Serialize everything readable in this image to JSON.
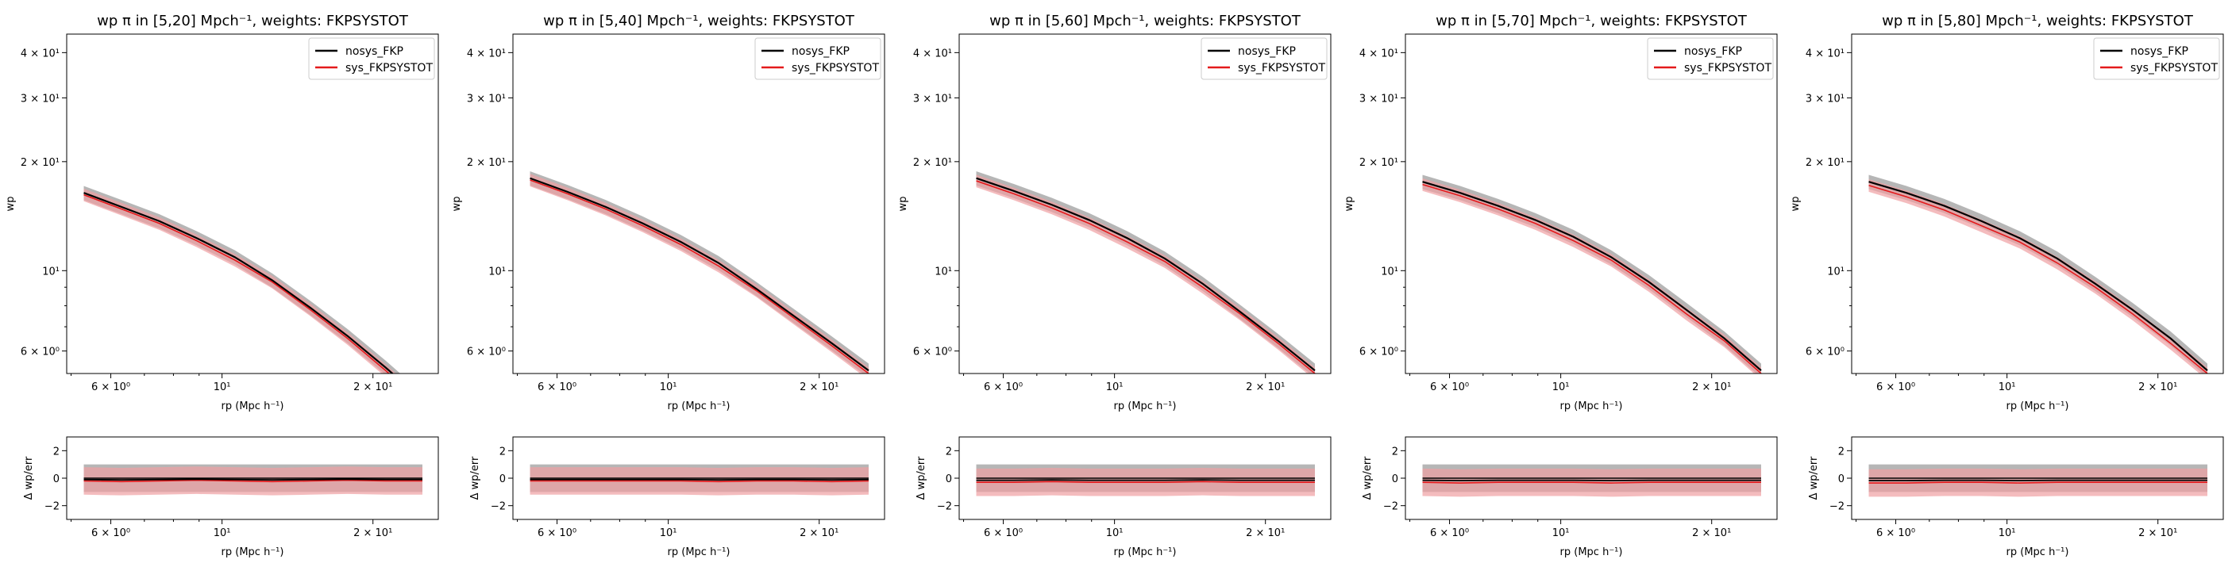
{
  "colors": {
    "nosys": "#000000",
    "sys": "#e41a1c",
    "nosys_band": "#9e9e9e",
    "sys_band": "#f0a0a3"
  },
  "chart_data": [
    {
      "type": "line",
      "title": "wp π in [5,20] Mpch⁻¹, weights: FKPSYSTOT",
      "xlabel": "rp (Mpc h⁻¹)",
      "ylabel": "wp",
      "xscale": "log",
      "yscale": "log",
      "xlim": [
        4.9,
        27
      ],
      "ylim": [
        5.2,
        45
      ],
      "xticks": [
        {
          "v": 6,
          "label": "6 × 10⁰"
        },
        {
          "v": 10,
          "label": "10¹"
        },
        {
          "v": 20,
          "label": "2 × 10¹"
        }
      ],
      "yticks": [
        {
          "v": 6,
          "label": "6 × 10⁰"
        },
        {
          "v": 10,
          "label": "10¹"
        },
        {
          "v": 20,
          "label": "2 × 10¹"
        },
        {
          "v": 30,
          "label": "3 × 10¹"
        },
        {
          "v": 40,
          "label": "4 × 10¹"
        }
      ],
      "legend": {
        "position": "top-right",
        "entries": [
          "nosys_FKP",
          "sys_FKPSYSTOT"
        ]
      },
      "x": [
        5.3,
        6.3,
        7.5,
        8.9,
        10.6,
        12.6,
        15.0,
        17.8,
        21.2,
        25.1
      ],
      "series": [
        {
          "name": "nosys_FKP",
          "values": [
            16.4,
            15.0,
            13.7,
            12.3,
            10.9,
            9.4,
            7.9,
            6.6,
            5.4,
            4.4
          ]
        },
        {
          "name": "sys_FKPSYSTOT",
          "values": [
            16.2,
            14.8,
            13.5,
            12.1,
            10.7,
            9.3,
            7.8,
            6.5,
            5.3,
            4.3
          ]
        }
      ],
      "residual": {
        "ylabel": "Δ wp/err",
        "ylim": [
          -3,
          3
        ],
        "yticks": [
          {
            "v": -2,
            "label": "−2"
          },
          {
            "v": 0,
            "label": "0"
          },
          {
            "v": 2,
            "label": "2"
          }
        ],
        "values": [
          -0.2,
          -0.25,
          -0.2,
          -0.15,
          -0.2,
          -0.25,
          -0.2,
          -0.15,
          -0.2,
          -0.2
        ]
      }
    },
    {
      "type": "line",
      "title": "wp π in [5,40] Mpch⁻¹, weights: FKPSYSTOT",
      "xlabel": "rp (Mpc h⁻¹)",
      "ylabel": "wp",
      "xscale": "log",
      "yscale": "log",
      "xlim": [
        4.9,
        27
      ],
      "ylim": [
        5.2,
        45
      ],
      "xticks": [
        {
          "v": 6,
          "label": "6 × 10⁰"
        },
        {
          "v": 10,
          "label": "10¹"
        },
        {
          "v": 20,
          "label": "2 × 10¹"
        }
      ],
      "yticks": [
        {
          "v": 6,
          "label": "6 × 10⁰"
        },
        {
          "v": 10,
          "label": "10¹"
        },
        {
          "v": 20,
          "label": "2 × 10¹"
        },
        {
          "v": 30,
          "label": "3 × 10¹"
        },
        {
          "v": 40,
          "label": "4 × 10¹"
        }
      ],
      "legend": {
        "position": "top-right",
        "entries": [
          "nosys_FKP",
          "sys_FKPSYSTOT"
        ]
      },
      "x": [
        5.3,
        6.3,
        7.5,
        8.9,
        10.6,
        12.6,
        15.0,
        17.8,
        21.2,
        25.1
      ],
      "series": [
        {
          "name": "nosys_FKP",
          "values": [
            18.0,
            16.5,
            15.0,
            13.5,
            12.0,
            10.5,
            8.9,
            7.5,
            6.3,
            5.3
          ]
        },
        {
          "name": "sys_FKPSYSTOT",
          "values": [
            17.8,
            16.3,
            14.8,
            13.3,
            11.8,
            10.3,
            8.8,
            7.4,
            6.2,
            5.2
          ]
        }
      ],
      "residual": {
        "ylabel": "Δ wp/err",
        "ylim": [
          -3,
          3
        ],
        "yticks": [
          {
            "v": -2,
            "label": "−2"
          },
          {
            "v": 0,
            "label": "0"
          },
          {
            "v": 2,
            "label": "2"
          }
        ],
        "values": [
          -0.2,
          -0.2,
          -0.2,
          -0.2,
          -0.2,
          -0.25,
          -0.2,
          -0.2,
          -0.25,
          -0.2
        ]
      }
    },
    {
      "type": "line",
      "title": "wp π in [5,60] Mpch⁻¹, weights: FKPSYSTOT",
      "xlabel": "rp (Mpc h⁻¹)",
      "ylabel": "wp",
      "xscale": "log",
      "yscale": "log",
      "xlim": [
        4.9,
        27
      ],
      "ylim": [
        5.2,
        45
      ],
      "xticks": [
        {
          "v": 6,
          "label": "6 × 10⁰"
        },
        {
          "v": 10,
          "label": "10¹"
        },
        {
          "v": 20,
          "label": "2 × 10¹"
        }
      ],
      "yticks": [
        {
          "v": 6,
          "label": "6 × 10⁰"
        },
        {
          "v": 10,
          "label": "10¹"
        },
        {
          "v": 20,
          "label": "2 × 10¹"
        },
        {
          "v": 30,
          "label": "3 × 10¹"
        },
        {
          "v": 40,
          "label": "4 × 10¹"
        }
      ],
      "legend": {
        "position": "top-right",
        "entries": [
          "nosys_FKP",
          "sys_FKPSYSTOT"
        ]
      },
      "x": [
        5.3,
        6.3,
        7.5,
        8.9,
        10.6,
        12.6,
        15.0,
        17.8,
        21.2,
        25.1
      ],
      "series": [
        {
          "name": "nosys_FKP",
          "values": [
            18.0,
            16.6,
            15.2,
            13.8,
            12.3,
            10.8,
            9.2,
            7.7,
            6.4,
            5.3
          ]
        },
        {
          "name": "sys_FKPSYSTOT",
          "values": [
            17.7,
            16.3,
            14.9,
            13.5,
            12.0,
            10.6,
            9.0,
            7.6,
            6.3,
            5.2
          ]
        }
      ],
      "residual": {
        "ylabel": "Δ wp/err",
        "ylim": [
          -3,
          3
        ],
        "yticks": [
          {
            "v": -2,
            "label": "−2"
          },
          {
            "v": 0,
            "label": "0"
          },
          {
            "v": 2,
            "label": "2"
          }
        ],
        "values": [
          -0.3,
          -0.3,
          -0.25,
          -0.3,
          -0.3,
          -0.3,
          -0.25,
          -0.3,
          -0.3,
          -0.3
        ]
      }
    },
    {
      "type": "line",
      "title": "wp π in [5,70] Mpch⁻¹, weights: FKPSYSTOT",
      "xlabel": "rp (Mpc h⁻¹)",
      "ylabel": "wp",
      "xscale": "log",
      "yscale": "log",
      "xlim": [
        4.9,
        27
      ],
      "ylim": [
        5.2,
        45
      ],
      "xticks": [
        {
          "v": 6,
          "label": "6 × 10⁰"
        },
        {
          "v": 10,
          "label": "10¹"
        },
        {
          "v": 20,
          "label": "2 × 10¹"
        }
      ],
      "yticks": [
        {
          "v": 6,
          "label": "6 × 10⁰"
        },
        {
          "v": 10,
          "label": "10¹"
        },
        {
          "v": 20,
          "label": "2 × 10¹"
        },
        {
          "v": 30,
          "label": "3 × 10¹"
        },
        {
          "v": 40,
          "label": "4 × 10¹"
        }
      ],
      "legend": {
        "position": "top-right",
        "entries": [
          "nosys_FKP",
          "sys_FKPSYSTOT"
        ]
      },
      "x": [
        5.3,
        6.3,
        7.5,
        8.9,
        10.6,
        12.6,
        15.0,
        17.8,
        21.2,
        25.1
      ],
      "series": [
        {
          "name": "nosys_FKP",
          "values": [
            17.6,
            16.4,
            15.1,
            13.8,
            12.4,
            10.9,
            9.3,
            7.8,
            6.5,
            5.3
          ]
        },
        {
          "name": "sys_FKPSYSTOT",
          "values": [
            17.3,
            16.1,
            14.8,
            13.5,
            12.1,
            10.7,
            9.1,
            7.6,
            6.4,
            5.2
          ]
        }
      ],
      "residual": {
        "ylabel": "Δ wp/err",
        "ylim": [
          -3,
          3
        ],
        "yticks": [
          {
            "v": -2,
            "label": "−2"
          },
          {
            "v": 0,
            "label": "0"
          },
          {
            "v": 2,
            "label": "2"
          }
        ],
        "values": [
          -0.3,
          -0.35,
          -0.3,
          -0.3,
          -0.3,
          -0.35,
          -0.3,
          -0.3,
          -0.3,
          -0.3
        ]
      }
    },
    {
      "type": "line",
      "title": "wp π in [5,80] Mpch⁻¹, weights: FKPSYSTOT",
      "xlabel": "rp (Mpc h⁻¹)",
      "ylabel": "wp",
      "xscale": "log",
      "yscale": "log",
      "xlim": [
        4.9,
        27
      ],
      "ylim": [
        5.2,
        45
      ],
      "xticks": [
        {
          "v": 6,
          "label": "6 × 10⁰"
        },
        {
          "v": 10,
          "label": "10¹"
        },
        {
          "v": 20,
          "label": "2 × 10¹"
        }
      ],
      "yticks": [
        {
          "v": 6,
          "label": "6 × 10⁰"
        },
        {
          "v": 10,
          "label": "10¹"
        },
        {
          "v": 20,
          "label": "2 × 10¹"
        },
        {
          "v": 30,
          "label": "3 × 10¹"
        },
        {
          "v": 40,
          "label": "4 × 10¹"
        }
      ],
      "legend": {
        "position": "top-right",
        "entries": [
          "nosys_FKP",
          "sys_FKPSYSTOT"
        ]
      },
      "x": [
        5.3,
        6.3,
        7.5,
        8.9,
        10.6,
        12.6,
        15.0,
        17.8,
        21.2,
        25.1
      ],
      "series": [
        {
          "name": "nosys_FKP",
          "values": [
            17.6,
            16.4,
            15.1,
            13.7,
            12.3,
            10.8,
            9.2,
            7.8,
            6.5,
            5.3
          ]
        },
        {
          "name": "sys_FKPSYSTOT",
          "values": [
            17.2,
            16.0,
            14.7,
            13.3,
            12.0,
            10.5,
            9.0,
            7.6,
            6.3,
            5.2
          ]
        }
      ],
      "residual": {
        "ylabel": "Δ wp/err",
        "ylim": [
          -3,
          3
        ],
        "yticks": [
          {
            "v": -2,
            "label": "−2"
          },
          {
            "v": 0,
            "label": "0"
          },
          {
            "v": 2,
            "label": "2"
          }
        ],
        "values": [
          -0.35,
          -0.35,
          -0.3,
          -0.3,
          -0.35,
          -0.3,
          -0.3,
          -0.3,
          -0.3,
          -0.3
        ]
      }
    }
  ]
}
